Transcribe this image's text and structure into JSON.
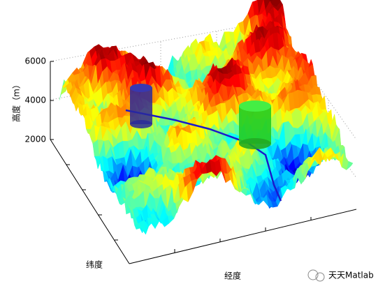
{
  "chart_data": {
    "type": "surface",
    "zlabel": "高度（m）",
    "ylabel": "纬度",
    "xlabel": "经度",
    "zlim": [
      2000,
      6000
    ],
    "zticks": [
      2000,
      4000,
      6000
    ],
    "grid": true
  },
  "watermark": "天天Matlab"
}
